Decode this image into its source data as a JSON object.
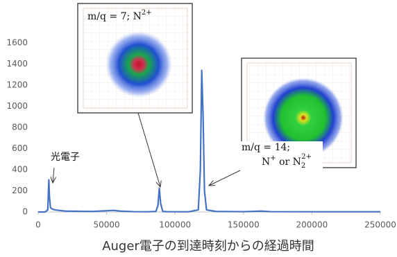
{
  "chart_data": {
    "type": "line",
    "x_label": "Auger電子の到達時刻からの経過時間",
    "x": [
      0,
      5000,
      7000,
      7800,
      8200,
      9000,
      10000,
      12000,
      20000,
      40000,
      50000,
      55000,
      60000,
      70000,
      80000,
      86000,
      87500,
      88500,
      89500,
      91000,
      95000,
      110000,
      117000,
      118500,
      119500,
      120500,
      121500,
      123000,
      130000,
      150000,
      163000,
      170000,
      200000,
      250000
    ],
    "series": [
      {
        "color": "#4472c4",
        "values": [
          0,
          0,
          20,
          305,
          150,
          40,
          30,
          20,
          8,
          5,
          12,
          15,
          8,
          3,
          2,
          5,
          60,
          225,
          80,
          5,
          2,
          2,
          20,
          400,
          1340,
          900,
          200,
          20,
          5,
          3,
          8,
          3,
          2,
          2
        ]
      }
    ],
    "xlim": [
      0,
      250000
    ],
    "xticks": [
      0,
      50000,
      100000,
      150000,
      200000,
      250000
    ],
    "ylim": [
      0,
      1600
    ],
    "yticks": [
      0,
      200,
      400,
      600,
      800,
      1000,
      1200,
      1400,
      1600
    ],
    "grid": false,
    "annotations": {
      "photoelectron": "光電子",
      "inset1": {
        "text": "m/q = 7; N",
        "sup": "2+"
      },
      "inset2": {
        "line1": "m/q = 14;",
        "a": "N",
        "a_sup": "+",
        "or": " or N",
        "b_sub": "2",
        "b_sup": "2+"
      }
    }
  }
}
